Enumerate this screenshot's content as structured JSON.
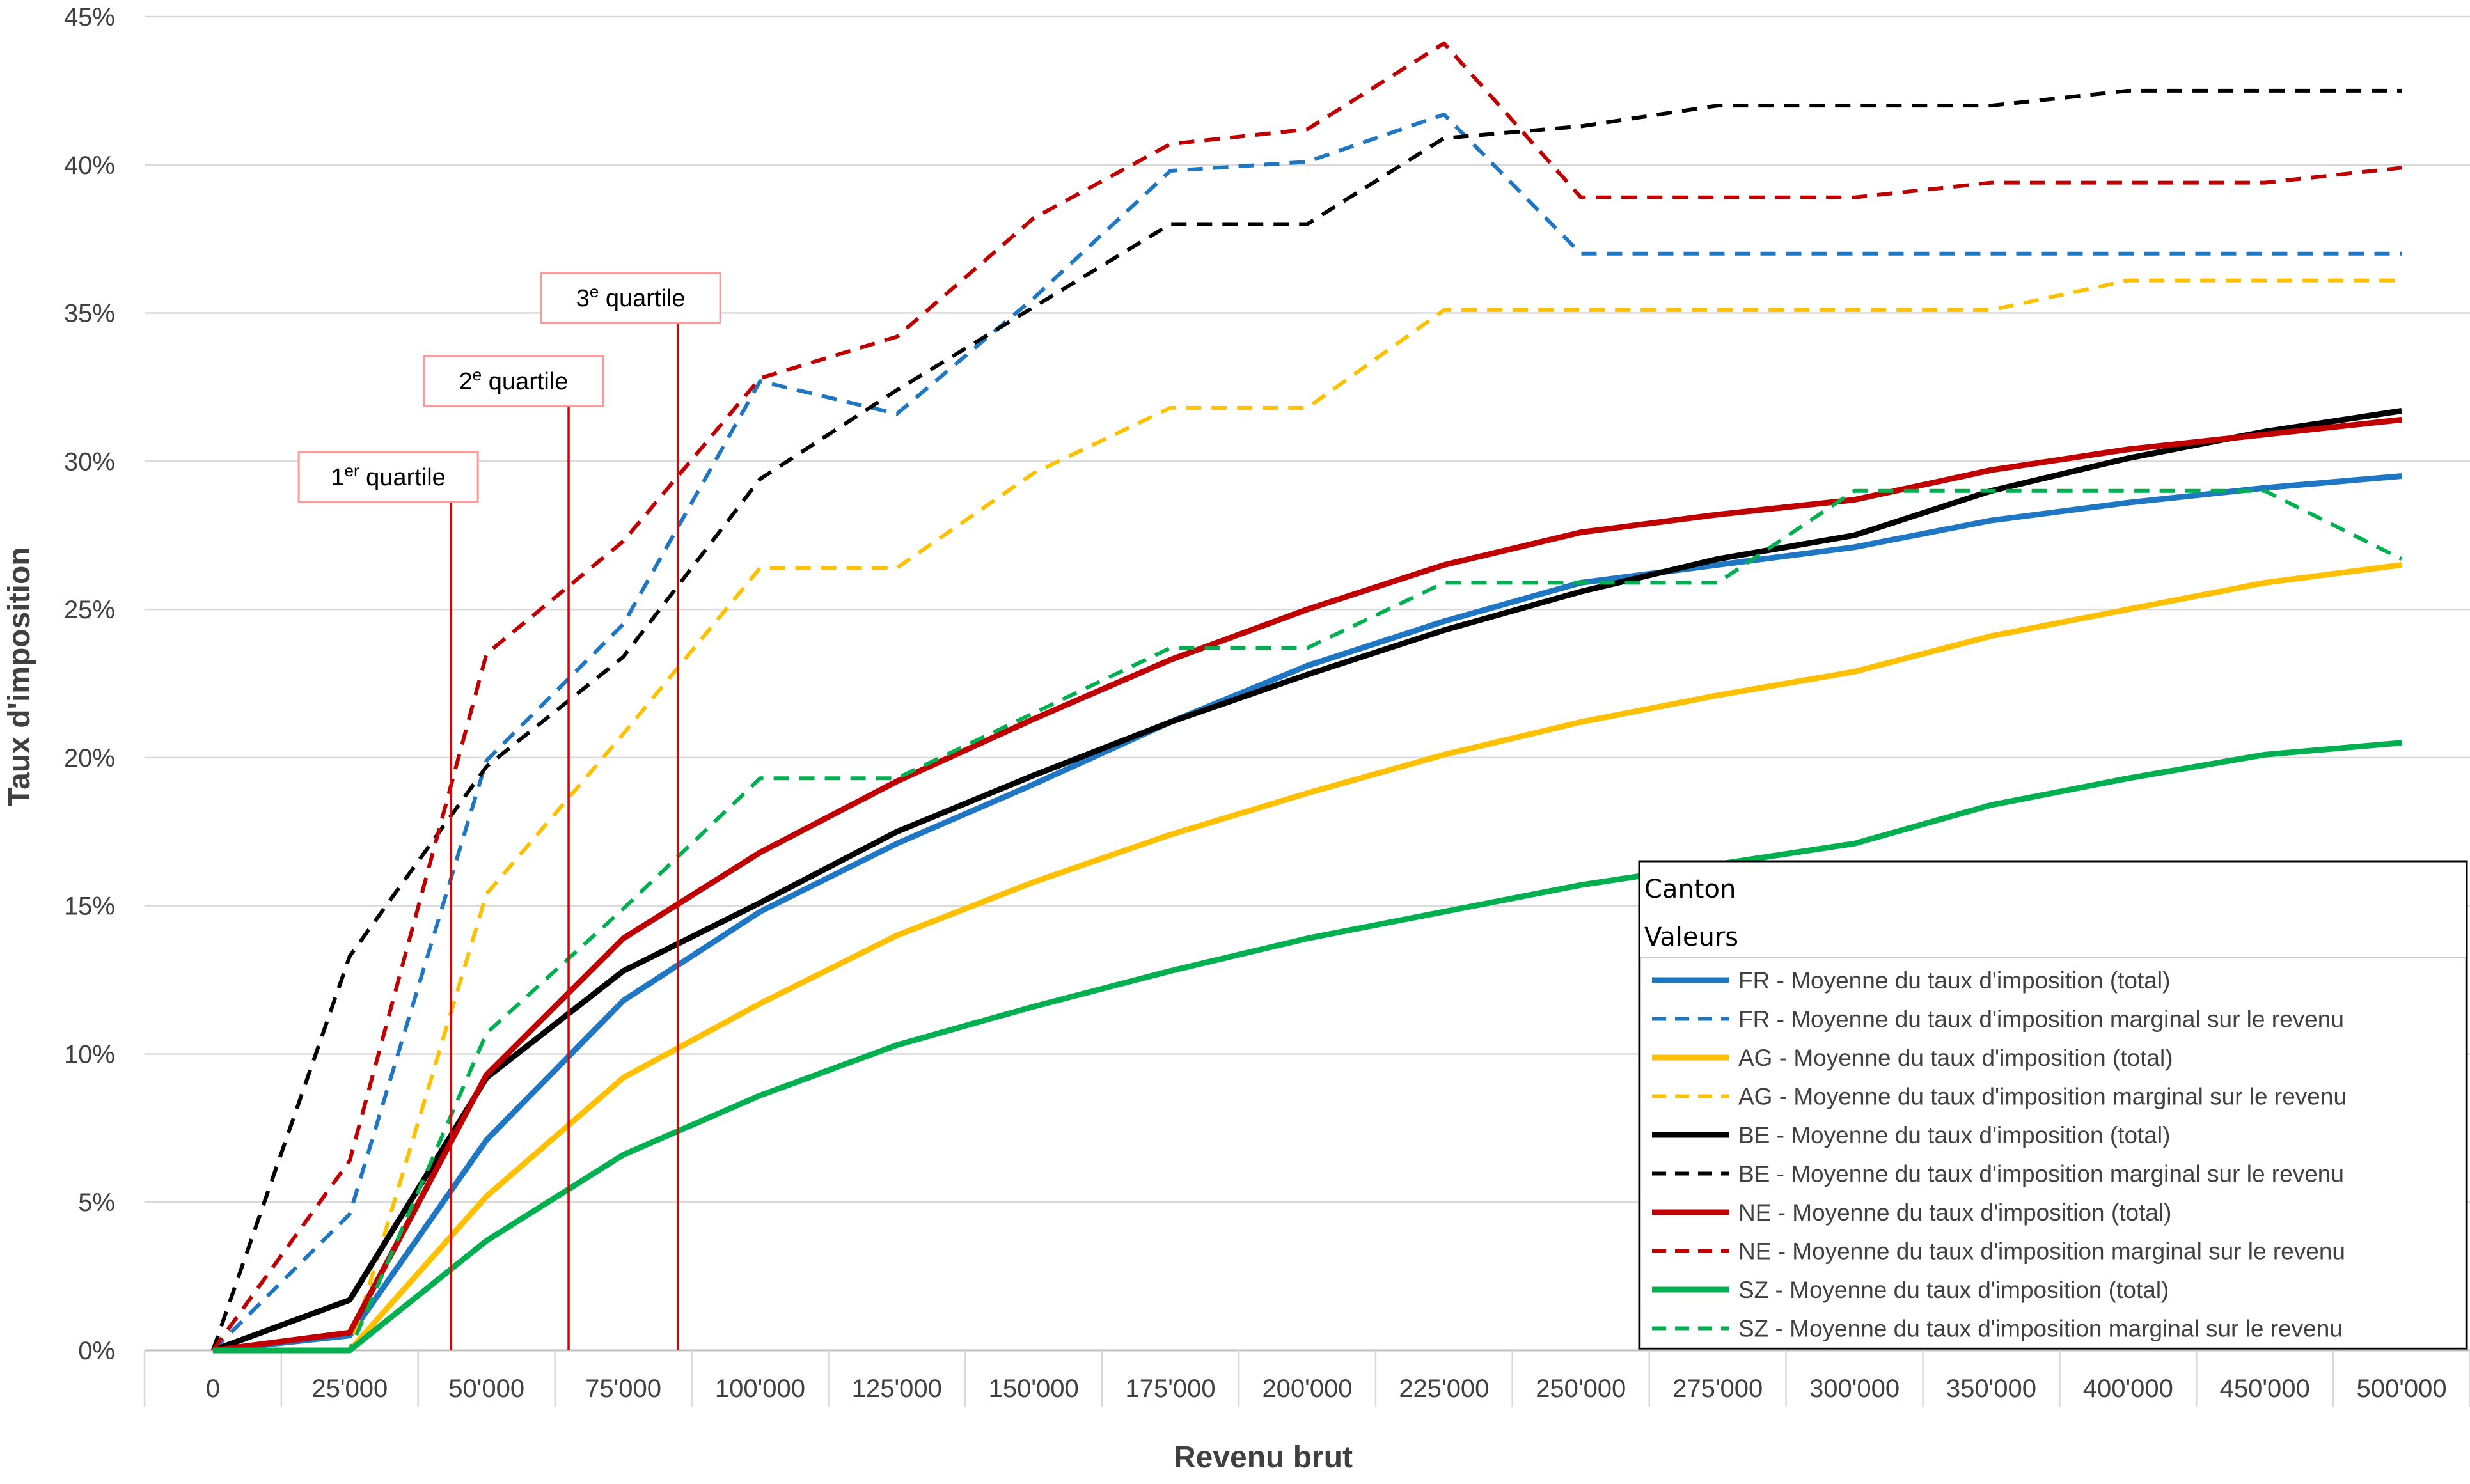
{
  "chart_data": {
    "type": "line",
    "xlabel": "Revenu brut",
    "ylabel": "Taux d'imposition",
    "ylim": [
      0,
      45
    ],
    "y_ticks": [
      "0%",
      "5%",
      "10%",
      "15%",
      "20%",
      "25%",
      "30%",
      "35%",
      "40%",
      "45%"
    ],
    "categories": [
      "0",
      "25'000",
      "50'000",
      "75'000",
      "100'000",
      "125'000",
      "150'000",
      "175'000",
      "200'000",
      "225'000",
      "250'000",
      "275'000",
      "300'000",
      "350'000",
      "400'000",
      "450'000",
      "500'000"
    ],
    "grid": true,
    "legend": {
      "position": "bottom-right",
      "header_1": "Canton",
      "header_2": "Valeurs"
    },
    "series": [
      {
        "name": "FR - Moyenne du taux d'imposition (total)",
        "color": "#1F77C4",
        "dashed": false,
        "values": [
          0,
          0.5,
          7.1,
          11.8,
          14.8,
          17.1,
          19.1,
          21.2,
          23.1,
          24.6,
          25.9,
          26.5,
          27.1,
          28.0,
          28.6,
          29.1,
          29.5
        ]
      },
      {
        "name": "FR - Moyenne du taux d'imposition marginal sur le revenu",
        "color": "#1F77C4",
        "dashed": true,
        "values": [
          0,
          4.6,
          19.9,
          24.5,
          32.7,
          31.6,
          35.5,
          39.8,
          40.1,
          41.7,
          37.0,
          37.0,
          37.0,
          37.0,
          37.0,
          37.0,
          37.0
        ]
      },
      {
        "name": "AG - Moyenne du taux d'imposition (total)",
        "color": "#FFC000",
        "dashed": false,
        "values": [
          0,
          0,
          5.2,
          9.2,
          11.7,
          14.0,
          15.8,
          17.4,
          18.8,
          20.1,
          21.2,
          22.1,
          22.9,
          24.1,
          25.0,
          25.9,
          26.5
        ]
      },
      {
        "name": "AG - Moyenne du taux d'imposition marginal sur le revenu",
        "color": "#FFC000",
        "dashed": true,
        "values": [
          0,
          0,
          15.4,
          20.8,
          26.4,
          26.4,
          29.6,
          31.8,
          31.8,
          35.1,
          35.1,
          35.1,
          35.1,
          35.1,
          36.1,
          36.1,
          36.1
        ]
      },
      {
        "name": "BE - Moyenne du taux d'imposition (total)",
        "color": "#000000",
        "dashed": false,
        "values": [
          0,
          1.7,
          9.2,
          12.8,
          15.1,
          17.5,
          19.4,
          21.2,
          22.8,
          24.3,
          25.6,
          26.7,
          27.5,
          29.0,
          30.1,
          31.0,
          31.7
        ]
      },
      {
        "name": "BE - Moyenne du taux d'imposition marginal sur le revenu",
        "color": "#000000",
        "dashed": true,
        "values": [
          0,
          13.3,
          19.7,
          23.4,
          29.4,
          32.4,
          35.2,
          38.0,
          38.0,
          40.9,
          41.3,
          42.0,
          42.0,
          42.0,
          42.5,
          42.5,
          42.5
        ]
      },
      {
        "name": "NE - Moyenne du taux d'imposition (total)",
        "color": "#C00000",
        "dashed": false,
        "values": [
          0,
          0.6,
          9.3,
          13.9,
          16.8,
          19.2,
          21.3,
          23.3,
          25.0,
          26.5,
          27.6,
          28.2,
          28.7,
          29.7,
          30.4,
          30.9,
          31.4
        ]
      },
      {
        "name": "NE - Moyenne du taux d'imposition marginal sur le revenu",
        "color": "#C00000",
        "dashed": true,
        "values": [
          0,
          6.4,
          23.5,
          27.3,
          32.8,
          34.2,
          38.2,
          40.7,
          41.2,
          44.1,
          38.9,
          38.9,
          38.9,
          39.4,
          39.4,
          39.4,
          39.9
        ]
      },
      {
        "name": "SZ - Moyenne du taux d'imposition (total)",
        "color": "#00B050",
        "dashed": false,
        "values": [
          0,
          0,
          3.7,
          6.6,
          8.6,
          10.3,
          11.6,
          12.8,
          13.9,
          14.8,
          15.7,
          16.4,
          17.1,
          18.4,
          19.3,
          20.1,
          20.5
        ]
      },
      {
        "name": "SZ - Moyenne du taux d'imposition marginal sur le revenu",
        "color": "#00B050",
        "dashed": true,
        "values": [
          0,
          0,
          10.7,
          14.9,
          19.3,
          19.3,
          21.5,
          23.7,
          23.7,
          25.9,
          25.9,
          25.9,
          29.0,
          29.0,
          29.0,
          29.0,
          26.7
        ]
      }
    ],
    "quartiles": [
      {
        "ordinal": "1",
        "sup": "er",
        "word": " quartile",
        "x_value": 43500
      },
      {
        "ordinal": "2",
        "sup": "e",
        "word": " quartile",
        "x_value": 65000
      },
      {
        "ordinal": "3",
        "sup": "e",
        "word": " quartile",
        "x_value": 85000
      }
    ]
  }
}
